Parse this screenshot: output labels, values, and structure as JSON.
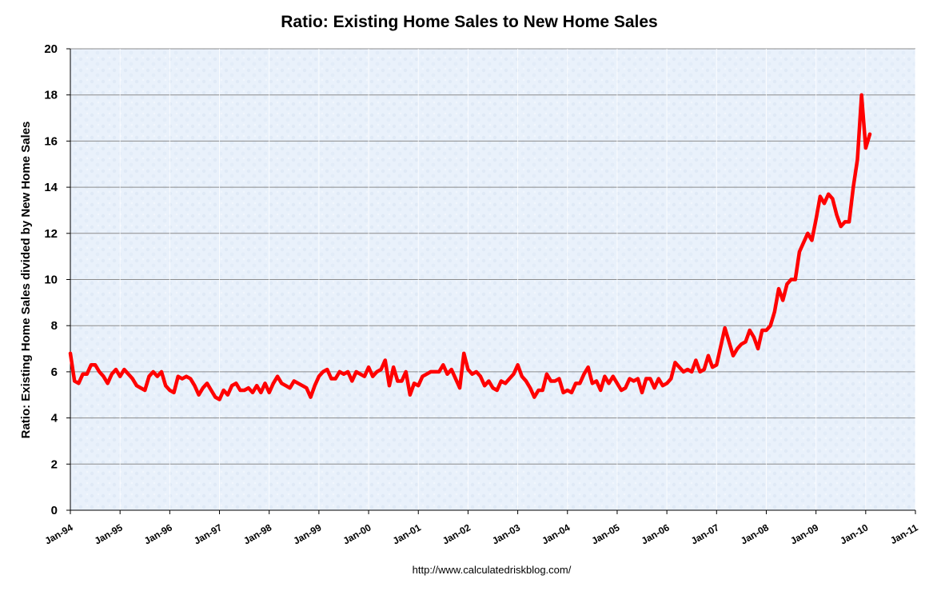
{
  "chart_data": {
    "type": "line",
    "title": "Ratio: Existing Home Sales to New Home Sales",
    "xlabel": "",
    "ylabel": "Ratio: Existing Home Sales divided by New Home Sales",
    "ylim": [
      0,
      20
    ],
    "yticks": [
      "0",
      "2",
      "4",
      "6",
      "8",
      "10",
      "12",
      "14",
      "16",
      "18",
      "20"
    ],
    "xticks": [
      "Jan-94",
      "Jan-95",
      "Jan-96",
      "Jan-97",
      "Jan-98",
      "Jan-99",
      "Jan-00",
      "Jan-01",
      "Jan-02",
      "Jan-03",
      "Jan-04",
      "Jan-05",
      "Jan-06",
      "Jan-07",
      "Jan-08",
      "Jan-09",
      "Jan-10",
      "Jan-11"
    ],
    "grid": true,
    "legend": "none",
    "source": "http://www.calculatedriskblog.com/",
    "colors": {
      "line": "#ff0000",
      "plot_bg": "#e8f0fa",
      "grid": "#8c8c8c",
      "axis": "#000000"
    },
    "x_start": "1994-01",
    "x_step": "month",
    "series": [
      {
        "name": "Ratio",
        "values": [
          6.8,
          5.6,
          5.5,
          5.9,
          5.9,
          6.3,
          6.3,
          6.0,
          5.8,
          5.5,
          5.9,
          6.1,
          5.8,
          6.1,
          5.9,
          5.7,
          5.4,
          5.3,
          5.2,
          5.8,
          6.0,
          5.8,
          6.0,
          5.4,
          5.2,
          5.1,
          5.8,
          5.7,
          5.8,
          5.7,
          5.4,
          5.0,
          5.3,
          5.5,
          5.2,
          4.9,
          4.8,
          5.2,
          5.0,
          5.4,
          5.5,
          5.2,
          5.2,
          5.3,
          5.1,
          5.4,
          5.1,
          5.5,
          5.1,
          5.5,
          5.8,
          5.5,
          5.4,
          5.3,
          5.6,
          5.5,
          5.4,
          5.3,
          4.9,
          5.4,
          5.8,
          6.0,
          6.1,
          5.7,
          5.7,
          6.0,
          5.9,
          6.0,
          5.6,
          6.0,
          5.9,
          5.8,
          6.2,
          5.8,
          6.0,
          6.1,
          6.5,
          5.4,
          6.2,
          5.6,
          5.6,
          6.0,
          5.0,
          5.5,
          5.4,
          5.8,
          5.9,
          6.0,
          6.0,
          6.0,
          6.3,
          5.9,
          6.1,
          5.7,
          5.3,
          6.8,
          6.1,
          5.9,
          6.0,
          5.8,
          5.4,
          5.6,
          5.3,
          5.2,
          5.6,
          5.5,
          5.7,
          5.9,
          6.3,
          5.8,
          5.6,
          5.3,
          4.9,
          5.2,
          5.2,
          5.9,
          5.6,
          5.6,
          5.7,
          5.1,
          5.2,
          5.1,
          5.5,
          5.5,
          5.9,
          6.2,
          5.5,
          5.6,
          5.2,
          5.8,
          5.5,
          5.8,
          5.5,
          5.2,
          5.3,
          5.7,
          5.6,
          5.7,
          5.1,
          5.7,
          5.7,
          5.3,
          5.7,
          5.4,
          5.5,
          5.7,
          6.4,
          6.2,
          6.0,
          6.1,
          6.0,
          6.5,
          6.0,
          6.1,
          6.7,
          6.2,
          6.3,
          7.1,
          7.9,
          7.3,
          6.7,
          7.0,
          7.2,
          7.3,
          7.8,
          7.5,
          7.0,
          7.8,
          7.8,
          8.0,
          8.6,
          9.6,
          9.1,
          9.8,
          10.0,
          10.0,
          11.2,
          11.6,
          12.0,
          11.7,
          12.6,
          13.6,
          13.3,
          13.7,
          13.5,
          12.8,
          12.3,
          12.5,
          12.5,
          14.0,
          15.2,
          18.0,
          15.7,
          16.3
        ]
      }
    ]
  }
}
